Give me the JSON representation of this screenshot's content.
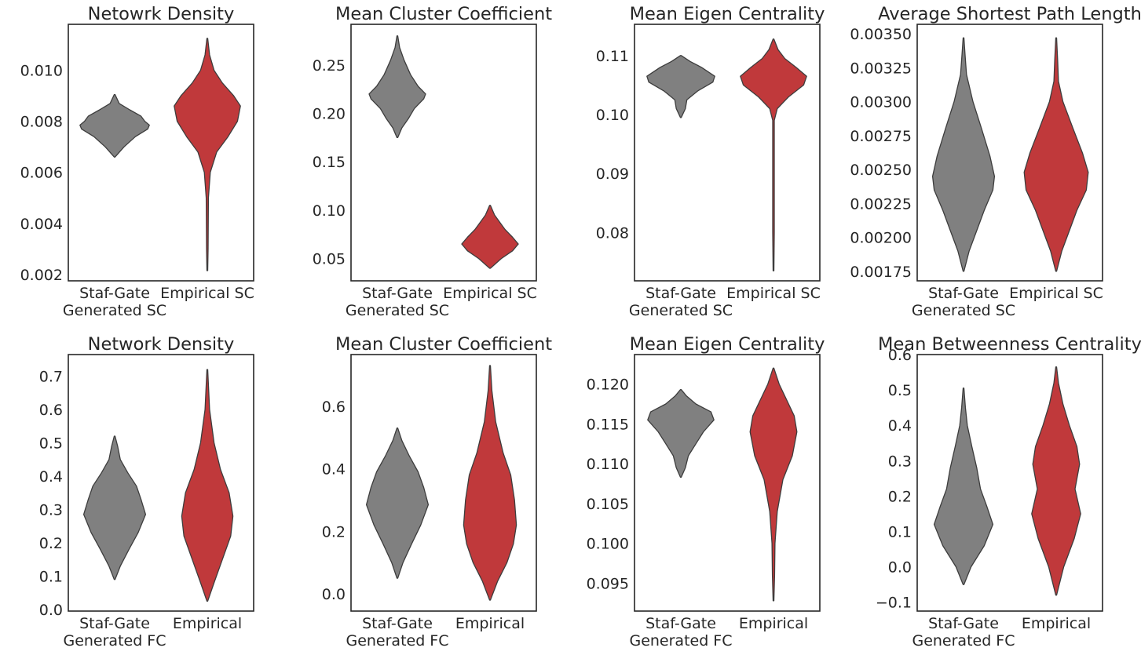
{
  "chart_data": [
    {
      "type": "violin",
      "title": "Netowrk Density",
      "categories": [
        "Staf-Gate\nGenerated SC",
        "Empirical SC"
      ],
      "ylim": [
        0.00175,
        0.0118
      ],
      "yticks": [
        0.002,
        0.004,
        0.006,
        0.008,
        0.01
      ],
      "ytick_labels": [
        "0.002",
        "0.004",
        "0.006",
        "0.008",
        "0.010"
      ],
      "colors": [
        "#808080",
        "#c0393b"
      ],
      "violins": [
        {
          "name": "Staf-Gate Generated SC",
          "points": [
            [
              0.0066,
              0.01
            ],
            [
              0.007,
              0.25
            ],
            [
              0.0074,
              0.55
            ],
            [
              0.0077,
              0.88
            ],
            [
              0.00785,
              0.92
            ],
            [
              0.008,
              0.8
            ],
            [
              0.0082,
              0.7
            ],
            [
              0.00845,
              0.4
            ],
            [
              0.0087,
              0.12
            ],
            [
              0.00905,
              0.01
            ]
          ]
        },
        {
          "name": "Empirical SC",
          "points": [
            [
              0.00215,
              0.01
            ],
            [
              0.003,
              0.02
            ],
            [
              0.005,
              0.03
            ],
            [
              0.006,
              0.08
            ],
            [
              0.0068,
              0.25
            ],
            [
              0.0074,
              0.55
            ],
            [
              0.008,
              0.8
            ],
            [
              0.0086,
              0.88
            ],
            [
              0.009,
              0.7
            ],
            [
              0.0095,
              0.4
            ],
            [
              0.01,
              0.18
            ],
            [
              0.0106,
              0.06
            ],
            [
              0.01125,
              0.01
            ]
          ]
        }
      ]
    },
    {
      "type": "violin",
      "title": "Mean Cluster Coefficient",
      "categories": [
        "Staf-Gate\nGenerated SC",
        "Empirical SC"
      ],
      "ylim": [
        0.027,
        0.292
      ],
      "yticks": [
        0.05,
        0.1,
        0.15,
        0.2,
        0.25
      ],
      "ytick_labels": [
        "0.05",
        "0.10",
        "0.15",
        "0.20",
        "0.25"
      ],
      "colors": [
        "#808080",
        "#c0393b"
      ],
      "violins": [
        {
          "name": "Staf-Gate Generated SC",
          "points": [
            [
              0.175,
              0.01
            ],
            [
              0.185,
              0.12
            ],
            [
              0.195,
              0.3
            ],
            [
              0.205,
              0.45
            ],
            [
              0.215,
              0.7
            ],
            [
              0.22,
              0.75
            ],
            [
              0.228,
              0.55
            ],
            [
              0.24,
              0.35
            ],
            [
              0.255,
              0.18
            ],
            [
              0.268,
              0.06
            ],
            [
              0.28,
              0.01
            ]
          ]
        },
        {
          "name": "Empirical SC",
          "points": [
            [
              0.04,
              0.01
            ],
            [
              0.05,
              0.3
            ],
            [
              0.058,
              0.6
            ],
            [
              0.065,
              0.75
            ],
            [
              0.072,
              0.6
            ],
            [
              0.08,
              0.4
            ],
            [
              0.088,
              0.25
            ],
            [
              0.095,
              0.12
            ],
            [
              0.105,
              0.01
            ]
          ]
        }
      ]
    },
    {
      "type": "violin",
      "title": "Mean Eigen Centrality",
      "categories": [
        "Staf-Gate\nGenerated SC",
        "Empirical SC"
      ],
      "ylim": [
        0.0718,
        0.1153
      ],
      "yticks": [
        0.08,
        0.09,
        0.1,
        0.11
      ],
      "ytick_labels": [
        "0.08",
        "0.09",
        "0.10",
        "0.11"
      ],
      "colors": [
        "#808080",
        "#c0393b"
      ],
      "violins": [
        {
          "name": "Staf-Gate Generated SC",
          "points": [
            [
              0.0995,
              0.01
            ],
            [
              0.101,
              0.12
            ],
            [
              0.1025,
              0.16
            ],
            [
              0.104,
              0.45
            ],
            [
              0.1055,
              0.85
            ],
            [
              0.1065,
              0.9
            ],
            [
              0.108,
              0.55
            ],
            [
              0.109,
              0.25
            ],
            [
              0.11,
              0.01
            ]
          ]
        },
        {
          "name": "Empirical SC",
          "points": [
            [
              0.0735,
              0.01
            ],
            [
              0.08,
              0.02
            ],
            [
              0.09,
              0.02
            ],
            [
              0.099,
              0.02
            ],
            [
              0.101,
              0.1
            ],
            [
              0.103,
              0.4
            ],
            [
              0.105,
              0.8
            ],
            [
              0.1065,
              0.88
            ],
            [
              0.108,
              0.6
            ],
            [
              0.1095,
              0.3
            ],
            [
              0.111,
              0.12
            ],
            [
              0.1128,
              0.01
            ]
          ]
        }
      ]
    },
    {
      "type": "violin",
      "title": "Average Shortest Path Length",
      "categories": [
        "Staf-Gate\nGenerated SC",
        "Empirical SC"
      ],
      "ylim": [
        0.00168,
        0.00357
      ],
      "yticks": [
        0.00175,
        0.002,
        0.00225,
        0.0025,
        0.00275,
        0.003,
        0.00325,
        0.0035
      ],
      "ytick_labels": [
        "0.00175",
        "0.00200",
        "0.00225",
        "0.00250",
        "0.00275",
        "0.00300",
        "0.00325",
        "0.00350"
      ],
      "colors": [
        "#808080",
        "#c0393b"
      ],
      "violins": [
        {
          "name": "Staf-Gate Generated SC",
          "points": [
            [
              0.00175,
              0.01
            ],
            [
              0.0019,
              0.15
            ],
            [
              0.00205,
              0.35
            ],
            [
              0.0022,
              0.55
            ],
            [
              0.00235,
              0.78
            ],
            [
              0.00245,
              0.82
            ],
            [
              0.0026,
              0.7
            ],
            [
              0.0028,
              0.48
            ],
            [
              0.003,
              0.25
            ],
            [
              0.0032,
              0.08
            ],
            [
              0.00335,
              0.04
            ],
            [
              0.00347,
              0.01
            ]
          ]
        },
        {
          "name": "Empirical SC",
          "points": [
            [
              0.00175,
              0.01
            ],
            [
              0.0019,
              0.15
            ],
            [
              0.00205,
              0.35
            ],
            [
              0.0022,
              0.55
            ],
            [
              0.00235,
              0.8
            ],
            [
              0.00248,
              0.85
            ],
            [
              0.00262,
              0.7
            ],
            [
              0.0028,
              0.45
            ],
            [
              0.003,
              0.18
            ],
            [
              0.00315,
              0.06
            ],
            [
              0.0033,
              0.04
            ],
            [
              0.00347,
              0.01
            ]
          ]
        }
      ]
    },
    {
      "type": "violin",
      "title": "Network Density",
      "categories": [
        "Staf-Gate\nGenerated FC",
        "Empirical"
      ],
      "ylim": [
        -0.005,
        0.765
      ],
      "yticks": [
        0.0,
        0.1,
        0.2,
        0.3,
        0.4,
        0.5,
        0.6,
        0.7
      ],
      "ytick_labels": [
        "0.0",
        "0.1",
        "0.2",
        "0.3",
        "0.4",
        "0.5",
        "0.6",
        "0.7"
      ],
      "colors": [
        "#808080",
        "#c0393b"
      ],
      "violins": [
        {
          "name": "Staf-Gate Generated FC",
          "points": [
            [
              0.09,
              0.01
            ],
            [
              0.13,
              0.15
            ],
            [
              0.18,
              0.38
            ],
            [
              0.23,
              0.62
            ],
            [
              0.285,
              0.82
            ],
            [
              0.33,
              0.7
            ],
            [
              0.37,
              0.58
            ],
            [
              0.41,
              0.35
            ],
            [
              0.45,
              0.15
            ],
            [
              0.49,
              0.08
            ],
            [
              0.52,
              0.01
            ]
          ]
        },
        {
          "name": "Empirical",
          "points": [
            [
              0.025,
              0.01
            ],
            [
              0.08,
              0.18
            ],
            [
              0.15,
              0.4
            ],
            [
              0.22,
              0.62
            ],
            [
              0.28,
              0.68
            ],
            [
              0.35,
              0.58
            ],
            [
              0.42,
              0.35
            ],
            [
              0.5,
              0.18
            ],
            [
              0.6,
              0.06
            ],
            [
              0.72,
              0.01
            ]
          ]
        }
      ]
    },
    {
      "type": "violin",
      "title": "Mean Cluster Coefficient",
      "categories": [
        "Staf-Gate\nGenerated FC",
        "Empirical"
      ],
      "ylim": [
        -0.055,
        0.765
      ],
      "yticks": [
        0.0,
        0.2,
        0.4,
        0.6
      ],
      "ytick_labels": [
        "0.0",
        "0.2",
        "0.4",
        "0.6"
      ],
      "colors": [
        "#808080",
        "#c0393b"
      ],
      "violins": [
        {
          "name": "Staf-Gate Generated FC",
          "points": [
            [
              0.05,
              0.01
            ],
            [
              0.1,
              0.15
            ],
            [
              0.16,
              0.38
            ],
            [
              0.22,
              0.62
            ],
            [
              0.285,
              0.82
            ],
            [
              0.34,
              0.7
            ],
            [
              0.39,
              0.55
            ],
            [
              0.44,
              0.32
            ],
            [
              0.49,
              0.12
            ],
            [
              0.53,
              0.01
            ]
          ]
        },
        {
          "name": "Empirical",
          "points": [
            [
              -0.02,
              0.01
            ],
            [
              0.04,
              0.2
            ],
            [
              0.1,
              0.45
            ],
            [
              0.16,
              0.62
            ],
            [
              0.22,
              0.7
            ],
            [
              0.3,
              0.65
            ],
            [
              0.38,
              0.55
            ],
            [
              0.45,
              0.35
            ],
            [
              0.55,
              0.15
            ],
            [
              0.65,
              0.05
            ],
            [
              0.73,
              0.01
            ]
          ]
        }
      ]
    },
    {
      "type": "violin",
      "title": "Mean Eigen Centrality",
      "categories": [
        "Staf-Gate\nGenerated FC",
        "Empirical"
      ],
      "ylim": [
        0.0915,
        0.1237
      ],
      "yticks": [
        0.095,
        0.1,
        0.105,
        0.11,
        0.115,
        0.12
      ],
      "ytick_labels": [
        "0.095",
        "0.100",
        "0.105",
        "0.110",
        "0.115",
        "0.120"
      ],
      "colors": [
        "#808080",
        "#c0393b"
      ],
      "violins": [
        {
          "name": "Staf-Gate Generated FC",
          "points": [
            [
              0.1083,
              0.01
            ],
            [
              0.1095,
              0.12
            ],
            [
              0.111,
              0.2
            ],
            [
              0.1125,
              0.4
            ],
            [
              0.114,
              0.6
            ],
            [
              0.1155,
              0.88
            ],
            [
              0.1165,
              0.8
            ],
            [
              0.1175,
              0.4
            ],
            [
              0.1185,
              0.15
            ],
            [
              0.1193,
              0.01
            ]
          ]
        },
        {
          "name": "Empirical",
          "points": [
            [
              0.0928,
              0.01
            ],
            [
              0.096,
              0.03
            ],
            [
              0.1,
              0.04
            ],
            [
              0.104,
              0.1
            ],
            [
              0.108,
              0.25
            ],
            [
              0.111,
              0.5
            ],
            [
              0.114,
              0.62
            ],
            [
              0.116,
              0.55
            ],
            [
              0.118,
              0.35
            ],
            [
              0.12,
              0.15
            ],
            [
              0.122,
              0.01
            ]
          ]
        }
      ]
    },
    {
      "type": "violin",
      "title": "Mean Betweenness Centrality",
      "categories": [
        "Staf-Gate\nGenerated FC",
        "Empirical"
      ],
      "ylim": [
        -0.125,
        0.6
      ],
      "yticks": [
        -0.1,
        0.0,
        0.1,
        0.2,
        0.3,
        0.4,
        0.5,
        0.6
      ],
      "ytick_labels": [
        "−0.1",
        "0.0",
        "0.1",
        "0.2",
        "0.3",
        "0.4",
        "0.5",
        "0.6"
      ],
      "colors": [
        "#808080",
        "#c0393b"
      ],
      "violins": [
        {
          "name": "Staf-Gate Generated FC",
          "points": [
            [
              -0.05,
              0.01
            ],
            [
              0.0,
              0.2
            ],
            [
              0.06,
              0.55
            ],
            [
              0.12,
              0.78
            ],
            [
              0.17,
              0.62
            ],
            [
              0.22,
              0.45
            ],
            [
              0.28,
              0.35
            ],
            [
              0.34,
              0.22
            ],
            [
              0.4,
              0.1
            ],
            [
              0.45,
              0.05
            ],
            [
              0.505,
              0.01
            ]
          ]
        },
        {
          "name": "Empirical",
          "points": [
            [
              -0.08,
              0.01
            ],
            [
              0.0,
              0.2
            ],
            [
              0.08,
              0.48
            ],
            [
              0.15,
              0.65
            ],
            [
              0.22,
              0.5
            ],
            [
              0.29,
              0.62
            ],
            [
              0.34,
              0.55
            ],
            [
              0.4,
              0.35
            ],
            [
              0.46,
              0.18
            ],
            [
              0.52,
              0.06
            ],
            [
              0.565,
              0.01
            ]
          ]
        }
      ]
    }
  ]
}
